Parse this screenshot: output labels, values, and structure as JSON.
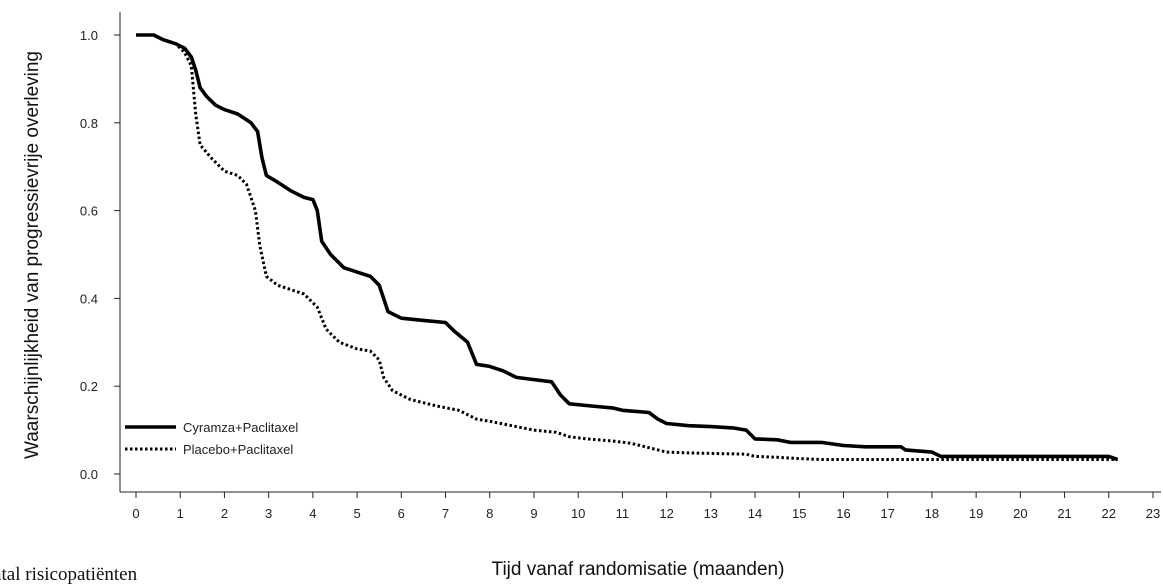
{
  "chart_data": {
    "type": "line",
    "title": "",
    "xlabel": "Tijd vanaf randomisatie (maanden)",
    "ylabel": "Waarschijnlijkheid van progressievrije overleving",
    "xlim": [
      0,
      23
    ],
    "ylim": [
      0,
      1.0
    ],
    "x_ticks": [
      0,
      1,
      2,
      3,
      4,
      5,
      6,
      7,
      8,
      9,
      10,
      11,
      12,
      13,
      14,
      15,
      16,
      17,
      18,
      19,
      20,
      21,
      22,
      23
    ],
    "y_ticks": [
      0.0,
      0.2,
      0.4,
      0.6,
      0.8,
      1.0
    ],
    "y_tick_labels": [
      "0.0",
      "0.2",
      "0.4",
      "0.6",
      "0.8",
      "1.0"
    ],
    "grid": false,
    "legend_position": "bottom-left",
    "series": [
      {
        "name": "Cyramza+Paclitaxel",
        "style": "solid",
        "color": "#000000",
        "points": [
          [
            0,
            1.0
          ],
          [
            0.4,
            1.0
          ],
          [
            0.6,
            0.99
          ],
          [
            0.9,
            0.98
          ],
          [
            1.1,
            0.97
          ],
          [
            1.25,
            0.95
          ],
          [
            1.35,
            0.92
          ],
          [
            1.45,
            0.88
          ],
          [
            1.6,
            0.86
          ],
          [
            1.8,
            0.84
          ],
          [
            2.0,
            0.83
          ],
          [
            2.3,
            0.82
          ],
          [
            2.6,
            0.8
          ],
          [
            2.75,
            0.78
          ],
          [
            2.85,
            0.72
          ],
          [
            2.95,
            0.68
          ],
          [
            3.2,
            0.665
          ],
          [
            3.5,
            0.645
          ],
          [
            3.8,
            0.63
          ],
          [
            4.0,
            0.625
          ],
          [
            4.1,
            0.6
          ],
          [
            4.2,
            0.53
          ],
          [
            4.4,
            0.5
          ],
          [
            4.7,
            0.47
          ],
          [
            5.0,
            0.46
          ],
          [
            5.3,
            0.45
          ],
          [
            5.5,
            0.43
          ],
          [
            5.7,
            0.37
          ],
          [
            6.0,
            0.355
          ],
          [
            6.5,
            0.35
          ],
          [
            7.0,
            0.345
          ],
          [
            7.2,
            0.325
          ],
          [
            7.5,
            0.3
          ],
          [
            7.7,
            0.25
          ],
          [
            8.0,
            0.245
          ],
          [
            8.3,
            0.235
          ],
          [
            8.6,
            0.22
          ],
          [
            9.0,
            0.215
          ],
          [
            9.4,
            0.21
          ],
          [
            9.6,
            0.18
          ],
          [
            9.8,
            0.16
          ],
          [
            10.3,
            0.155
          ],
          [
            10.8,
            0.15
          ],
          [
            11.0,
            0.145
          ],
          [
            11.6,
            0.14
          ],
          [
            11.8,
            0.125
          ],
          [
            12.0,
            0.115
          ],
          [
            12.5,
            0.11
          ],
          [
            13.0,
            0.108
          ],
          [
            13.5,
            0.105
          ],
          [
            13.8,
            0.1
          ],
          [
            14.0,
            0.08
          ],
          [
            14.5,
            0.078
          ],
          [
            14.8,
            0.072
          ],
          [
            15.5,
            0.072
          ],
          [
            16.0,
            0.065
          ],
          [
            16.5,
            0.062
          ],
          [
            17.3,
            0.062
          ],
          [
            17.4,
            0.055
          ],
          [
            18.0,
            0.05
          ],
          [
            18.2,
            0.04
          ],
          [
            19.0,
            0.04
          ],
          [
            20.0,
            0.04
          ],
          [
            21.0,
            0.04
          ],
          [
            22.0,
            0.04
          ],
          [
            22.2,
            0.033
          ]
        ]
      },
      {
        "name": "Placebo+Paclitaxel",
        "style": "dotted",
        "color": "#000000",
        "points": [
          [
            0,
            1.0
          ],
          [
            0.4,
            1.0
          ],
          [
            0.6,
            0.99
          ],
          [
            0.9,
            0.98
          ],
          [
            1.1,
            0.96
          ],
          [
            1.25,
            0.93
          ],
          [
            1.35,
            0.82
          ],
          [
            1.45,
            0.75
          ],
          [
            1.7,
            0.72
          ],
          [
            2.0,
            0.69
          ],
          [
            2.3,
            0.68
          ],
          [
            2.5,
            0.66
          ],
          [
            2.7,
            0.6
          ],
          [
            2.8,
            0.52
          ],
          [
            2.95,
            0.45
          ],
          [
            3.2,
            0.43
          ],
          [
            3.5,
            0.42
          ],
          [
            3.8,
            0.41
          ],
          [
            4.1,
            0.38
          ],
          [
            4.3,
            0.33
          ],
          [
            4.6,
            0.3
          ],
          [
            5.0,
            0.285
          ],
          [
            5.3,
            0.28
          ],
          [
            5.5,
            0.26
          ],
          [
            5.6,
            0.22
          ],
          [
            5.8,
            0.19
          ],
          [
            6.2,
            0.17
          ],
          [
            6.8,
            0.155
          ],
          [
            7.3,
            0.145
          ],
          [
            7.7,
            0.125
          ],
          [
            8.0,
            0.12
          ],
          [
            8.5,
            0.11
          ],
          [
            9.0,
            0.1
          ],
          [
            9.5,
            0.095
          ],
          [
            9.8,
            0.085
          ],
          [
            10.2,
            0.08
          ],
          [
            10.8,
            0.075
          ],
          [
            11.2,
            0.07
          ],
          [
            11.6,
            0.06
          ],
          [
            12.0,
            0.05
          ],
          [
            12.5,
            0.048
          ],
          [
            13.0,
            0.047
          ],
          [
            13.8,
            0.045
          ],
          [
            14.0,
            0.04
          ],
          [
            14.5,
            0.038
          ],
          [
            15.0,
            0.035
          ],
          [
            15.5,
            0.033
          ],
          [
            16.5,
            0.033
          ],
          [
            18.0,
            0.033
          ],
          [
            19.5,
            0.033
          ],
          [
            21.0,
            0.033
          ],
          [
            22.2,
            0.033
          ]
        ]
      }
    ]
  },
  "partial_text": "ntal risicopatiënten"
}
